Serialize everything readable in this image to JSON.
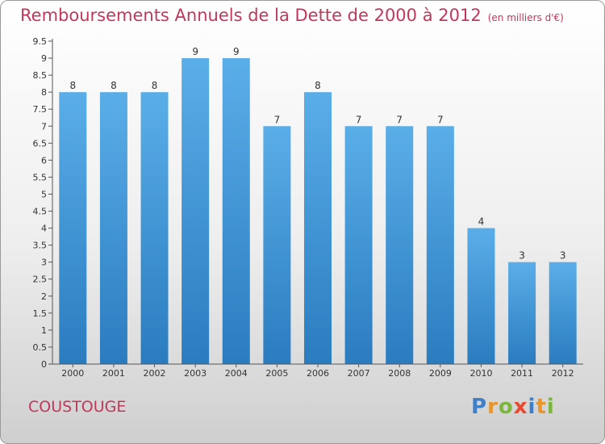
{
  "header": {
    "title": "Remboursements Annuels de la Dette de 2000 à 2012",
    "unit": "(en milliers d'€)"
  },
  "footer": {
    "commune": "COUSTOUGE",
    "logo_letters": [
      {
        "char": "P",
        "color": "#3d7fc9"
      },
      {
        "char": "r",
        "color": "#e8962a"
      },
      {
        "char": "o",
        "color": "#7ab73a"
      },
      {
        "char": "x",
        "color": "#e8492f"
      },
      {
        "char": "i",
        "color": "#3d7fc9"
      },
      {
        "char": "t",
        "color": "#e8962a"
      },
      {
        "char": "i",
        "color": "#7ab73a"
      }
    ]
  },
  "colors": {
    "bar_light": "#5aaee8",
    "bar_dark": "#2a7cbf",
    "title": "#c0385a"
  },
  "chart_data": {
    "type": "bar",
    "categories": [
      "2000",
      "2001",
      "2002",
      "2003",
      "2004",
      "2005",
      "2006",
      "2007",
      "2008",
      "2009",
      "2010",
      "2011",
      "2012"
    ],
    "values": [
      8,
      8,
      8,
      9,
      9,
      7,
      8,
      7,
      7,
      7,
      4,
      3,
      3
    ],
    "data_labels": [
      "8",
      "8",
      "8",
      "9",
      "9",
      "7",
      "8",
      "7",
      "7",
      "7",
      "4",
      "3",
      "3"
    ],
    "yticks": [
      0,
      0.5,
      1,
      1.5,
      2,
      2.5,
      3,
      3.5,
      4,
      4.5,
      5,
      5.5,
      6,
      6.5,
      7,
      7.5,
      8,
      8.5,
      9,
      9.5
    ],
    "ytick_labels": [
      "0",
      "0.5",
      "1",
      "1.5",
      "2",
      "2.5",
      "3",
      "3.5",
      "4",
      "4.5",
      "5",
      "5.5",
      "6",
      "6.5",
      "7",
      "7.5",
      "8",
      "8.5",
      "9",
      "9.5"
    ],
    "ylim": [
      0,
      9.5
    ],
    "xlabel": "",
    "ylabel": "",
    "grid": false
  }
}
